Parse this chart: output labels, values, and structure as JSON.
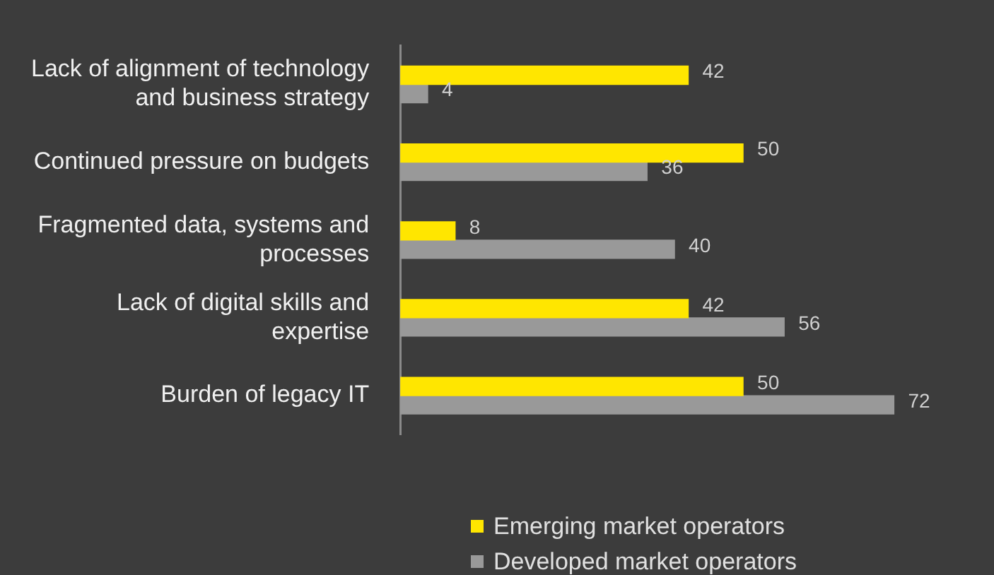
{
  "chart_data": {
    "type": "bar",
    "orientation": "horizontal",
    "categories": [
      "Lack of alignment of technology and business strategy",
      "Continued pressure on budgets",
      "Fragmented data, systems and processes",
      "Lack of digital skills and expertise",
      "Burden of legacy IT"
    ],
    "series": [
      {
        "name": "Emerging market operators",
        "color": "#ffe600",
        "values": [
          42,
          50,
          8,
          42,
          50
        ]
      },
      {
        "name": "Developed market operators",
        "color": "#999999",
        "values": [
          4,
          36,
          40,
          56,
          72
        ]
      }
    ],
    "data_labels": true,
    "legend": "bottom"
  }
}
